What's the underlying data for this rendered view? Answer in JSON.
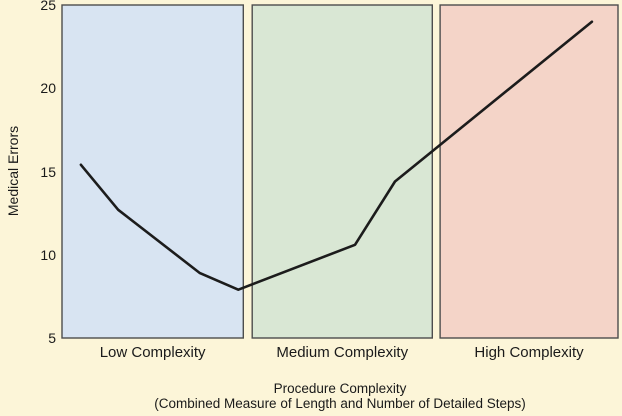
{
  "colors": {
    "background": "#fcf5d8",
    "panel_border": "#4d4d4d",
    "line": "#1c1c1c",
    "text": "#1a1a1a"
  },
  "y_axis": {
    "label": "Medical Errors"
  },
  "x_axis": {
    "title_line1": "Procedure Complexity",
    "title_line2": "(Combined Measure of Length and Number of Detailed Steps)"
  },
  "chart_data": {
    "type": "line",
    "title": "",
    "xlabel": "Procedure Complexity (Combined Measure of Length and Number of Detailed Steps)",
    "ylabel": "Medical Errors",
    "ylim": [
      5,
      25
    ],
    "yticks": [
      5,
      10,
      15,
      20,
      25
    ],
    "grid": false,
    "legend_position": "none",
    "regions": [
      {
        "label": "Low Complexity",
        "x_start_frac": 0.0,
        "x_end_frac": 0.326,
        "fill": "#d8e4f2"
      },
      {
        "label": "Medium Complexity",
        "x_start_frac": 0.342,
        "x_end_frac": 0.666,
        "fill": "#d9e7d4"
      },
      {
        "label": "High Complexity",
        "x_start_frac": 0.68,
        "x_end_frac": 1.0,
        "fill": "#f4d4c8"
      }
    ],
    "series": [
      {
        "name": "Medical Errors",
        "color": "#1c1c1c",
        "points": [
          {
            "x_frac": 0.034,
            "y": 15.4
          },
          {
            "x_frac": 0.101,
            "y": 12.7
          },
          {
            "x_frac": 0.248,
            "y": 8.9
          },
          {
            "x_frac": 0.317,
            "y": 7.9
          },
          {
            "x_frac": 0.527,
            "y": 10.6
          },
          {
            "x_frac": 0.599,
            "y": 14.4
          },
          {
            "x_frac": 0.953,
            "y": 24.0
          }
        ]
      }
    ]
  }
}
